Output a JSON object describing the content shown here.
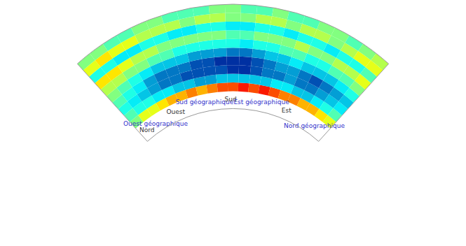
{
  "chart_data": {
    "type": "polar_heatmap",
    "thetalim": [
      48,
      132
    ],
    "rlim": [
      0,
      12
    ],
    "tick_labels": false,
    "theta": [
      130,
      126,
      122,
      118,
      114,
      110,
      106,
      102,
      98,
      94,
      90,
      86,
      82,
      78,
      74,
      70,
      66,
      62,
      58,
      54,
      50
    ],
    "r": [
      2,
      3,
      4,
      5,
      6,
      7,
      8,
      9,
      10,
      11
    ],
    "color_range": [
      0,
      10
    ],
    "cells": [
      [
        5,
        6,
        6,
        6.5,
        7,
        7,
        7.5,
        7,
        7.5,
        8,
        8,
        8.5,
        8,
        8.5,
        8,
        7.5,
        7.5,
        7,
        7,
        6.5,
        6
      ],
      [
        4.5,
        4,
        4,
        3.5,
        3.5,
        3,
        3,
        2.5,
        2.5,
        3,
        3,
        3,
        3,
        3,
        3.5,
        3.5,
        3,
        3,
        3.5,
        4,
        4.5
      ],
      [
        4,
        3.5,
        3,
        2.5,
        2,
        2,
        1.5,
        1.5,
        1.5,
        1.5,
        1,
        1,
        1.5,
        2,
        2,
        2.5,
        2,
        2,
        2.5,
        3,
        3.5
      ],
      [
        4.5,
        4,
        3.5,
        2.5,
        2,
        2,
        2,
        1.5,
        1.5,
        1,
        1,
        1,
        1.5,
        2,
        2.5,
        2.5,
        2,
        1.5,
        2,
        2.5,
        3
      ],
      [
        5,
        4.5,
        4,
        3.5,
        3,
        3,
        3,
        2.5,
        2.5,
        2.5,
        2,
        2,
        2.5,
        3,
        3,
        3.5,
        3,
        3,
        3,
        3.5,
        4
      ],
      [
        5.5,
        5.5,
        5,
        5,
        4.5,
        4.5,
        4,
        4,
        4,
        4,
        4,
        3.5,
        4,
        4,
        4.5,
        4.5,
        4,
        4,
        4.5,
        4.5,
        5
      ],
      [
        6.5,
        6.5,
        6,
        5.5,
        5.5,
        5,
        5,
        5,
        5,
        5,
        4.5,
        4.5,
        5,
        5,
        5,
        5.5,
        5,
        5,
        5.5,
        5.5,
        6
      ],
      [
        4,
        4,
        3.5,
        3.5,
        4,
        4,
        3.5,
        3.5,
        4,
        4,
        3.5,
        3.5,
        4,
        4,
        3.5,
        4,
        4,
        3.5,
        4,
        4,
        4.5
      ],
      [
        6,
        6.5,
        6,
        6,
        5.5,
        5.5,
        5.5,
        5,
        5.5,
        5.5,
        5,
        5,
        5.5,
        5.5,
        5,
        5.5,
        5.5,
        5,
        5.5,
        6,
        6
      ],
      [
        5,
        5,
        4.5,
        4.5,
        5,
        5,
        4.5,
        4.5,
        4.5,
        5,
        5,
        4.5,
        4.5,
        5,
        4.5,
        4.5,
        5,
        5,
        4.5,
        5,
        5.5
      ]
    ],
    "labels": [
      {
        "text": "Nord",
        "theta": 129,
        "color": "#333333"
      },
      {
        "text": "Ouest géographique",
        "theta": 124.5,
        "color": "#3333cc"
      },
      {
        "text": "Ouest",
        "theta": 114.8,
        "color": "#333333"
      },
      {
        "text": "Sud géographique",
        "theta": 102,
        "color": "#3333cc"
      },
      {
        "text": "Sud",
        "theta": 91,
        "color": "#333333"
      },
      {
        "text": "Est géographique",
        "theta": 78,
        "color": "#3333cc"
      },
      {
        "text": "Est",
        "theta": 67,
        "color": "#333333"
      },
      {
        "text": "Nord géographique",
        "theta": 53.5,
        "color": "#3333cc"
      }
    ]
  }
}
